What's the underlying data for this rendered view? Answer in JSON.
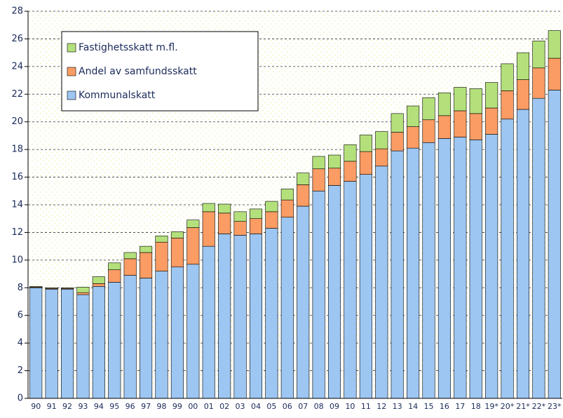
{
  "chart_data": {
    "type": "stacked-bar",
    "categories": [
      "90",
      "91",
      "92",
      "93",
      "94",
      "95",
      "96",
      "97",
      "98",
      "99",
      "00",
      "01",
      "02",
      "03",
      "04",
      "05",
      "06",
      "07",
      "08",
      "09",
      "10",
      "11",
      "12",
      "13",
      "14",
      "15",
      "16",
      "17",
      "18",
      "19*",
      "20*",
      "21*",
      "22*",
      "23*"
    ],
    "series": [
      {
        "name": "Kommunalskatt",
        "color": "#9dc6f2",
        "values": [
          8.0,
          7.9,
          7.9,
          7.5,
          8.1,
          8.4,
          8.9,
          8.7,
          9.2,
          9.5,
          9.7,
          11.0,
          11.9,
          11.8,
          11.9,
          12.3,
          13.1,
          13.9,
          15.0,
          15.4,
          15.7,
          16.2,
          16.8,
          17.9,
          18.1,
          18.5,
          18.8,
          18.9,
          18.7,
          19.1,
          20.2,
          20.9,
          21.7,
          22.3
        ]
      },
      {
        "name": "Andel av samfundsskatt",
        "color": "#fa9c64",
        "values": [
          0.05,
          0.05,
          0.05,
          0.15,
          0.2,
          0.9,
          1.2,
          1.85,
          2.1,
          2.1,
          2.65,
          2.5,
          1.5,
          1.0,
          1.1,
          1.2,
          1.25,
          1.55,
          1.6,
          1.25,
          1.45,
          1.65,
          1.25,
          1.35,
          1.55,
          1.65,
          1.65,
          1.9,
          1.9,
          1.9,
          2.05,
          2.15,
          2.2,
          2.3
        ]
      },
      {
        "name": "Fastighetsskatt m.fl.",
        "color": "#b4e07c",
        "values": [
          0.05,
          0.05,
          0.05,
          0.4,
          0.5,
          0.5,
          0.45,
          0.45,
          0.45,
          0.45,
          0.55,
          0.6,
          0.65,
          0.7,
          0.7,
          0.75,
          0.8,
          0.85,
          0.9,
          0.95,
          1.2,
          1.2,
          1.25,
          1.35,
          1.5,
          1.6,
          1.65,
          1.7,
          1.8,
          1.85,
          1.95,
          1.95,
          1.95,
          2.0
        ]
      }
    ],
    "ylim": [
      0,
      28
    ],
    "yticks": [
      0,
      2,
      4,
      6,
      8,
      10,
      12,
      14,
      16,
      18,
      20,
      22,
      24,
      26,
      28
    ],
    "grid": true
  }
}
